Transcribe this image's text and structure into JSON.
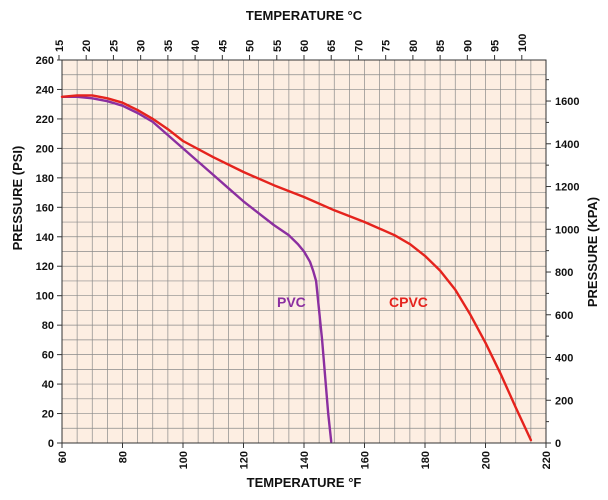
{
  "chart_data": {
    "type": "line",
    "title": "TEMPERATURE °C",
    "xlabel": "TEMPERATURE °F",
    "ylabel": "PRESSURE (PSI)",
    "y2label": "PRESSURE (KPA)",
    "xlim": [
      60,
      220
    ],
    "ylim": [
      0,
      260
    ],
    "y2lim": [
      0,
      1792
    ],
    "x_ticks": [
      "60",
      "80",
      "100",
      "120",
      "140",
      "160",
      "180",
      "200",
      "220"
    ],
    "x_tick_values": [
      60,
      80,
      100,
      120,
      140,
      160,
      180,
      200,
      220
    ],
    "y_ticks": [
      "0",
      "20",
      "40",
      "60",
      "80",
      "100",
      "120",
      "140",
      "160",
      "180",
      "200",
      "220",
      "240",
      "260"
    ],
    "y_tick_values": [
      0,
      20,
      40,
      60,
      80,
      100,
      120,
      140,
      160,
      180,
      200,
      220,
      240,
      260
    ],
    "y2_ticks": [
      "0",
      "200",
      "400",
      "600",
      "800",
      "1000",
      "1200",
      "1400",
      "1600"
    ],
    "y2_tick_values": [
      0,
      200,
      400,
      600,
      800,
      1000,
      1200,
      1400,
      1600
    ],
    "top_ticks": [
      "15",
      "20",
      "25",
      "30",
      "35",
      "40",
      "45",
      "50",
      "55",
      "60",
      "65",
      "70",
      "75",
      "80",
      "85",
      "90",
      "95",
      "100"
    ],
    "top_tick_values": [
      15,
      20,
      25,
      30,
      35,
      40,
      45,
      50,
      55,
      60,
      65,
      70,
      75,
      80,
      85,
      90,
      95,
      100
    ],
    "grid": true,
    "series": [
      {
        "name": "PVC",
        "color": "#8b2fa0",
        "x": [
          60,
          65,
          70,
          75,
          80,
          85,
          90,
          95,
          100,
          105,
          110,
          115,
          120,
          125,
          130,
          135,
          138,
          140,
          142,
          143,
          144,
          146,
          148,
          149
        ],
        "y": [
          235,
          235,
          234,
          232,
          229,
          224,
          218,
          209,
          200,
          191,
          182,
          173,
          164,
          156,
          148,
          141,
          135,
          130,
          123,
          117,
          110,
          70,
          20,
          1
        ]
      },
      {
        "name": "CPVC",
        "color": "#e5231d",
        "x": [
          60,
          65,
          70,
          75,
          80,
          85,
          90,
          95,
          100,
          110,
          120,
          130,
          140,
          150,
          160,
          170,
          175,
          180,
          185,
          190,
          195,
          200,
          205,
          210,
          215
        ],
        "y": [
          235,
          236,
          236,
          234,
          231,
          226,
          220,
          213,
          205,
          194,
          184,
          175,
          167,
          158,
          150,
          141,
          135,
          127,
          117,
          104,
          87,
          68,
          47,
          24,
          2
        ]
      }
    ]
  }
}
